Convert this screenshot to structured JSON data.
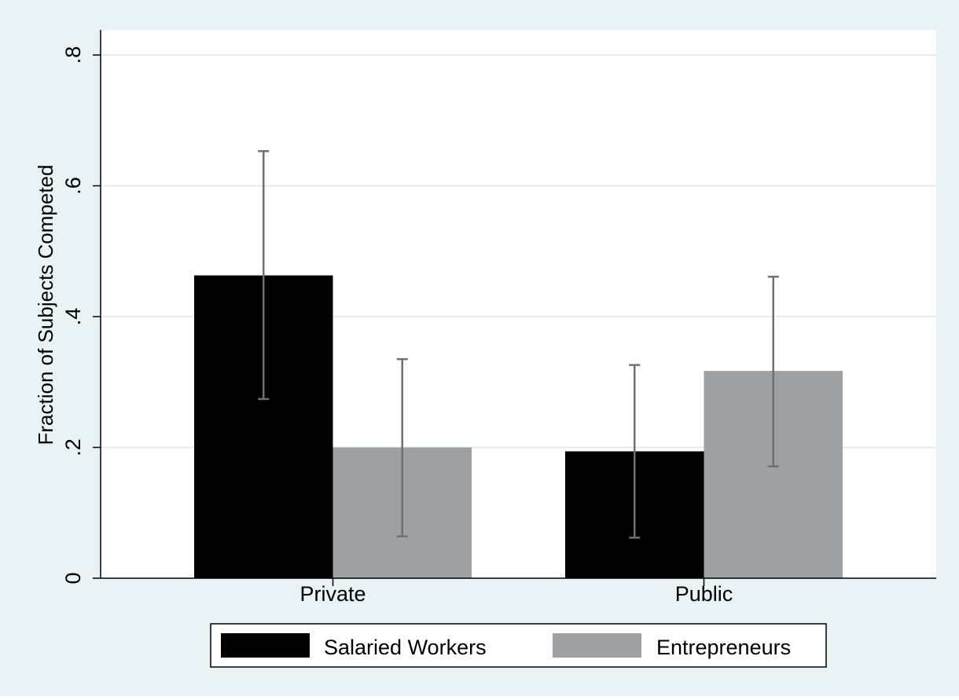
{
  "chart_data": {
    "type": "bar",
    "title": "",
    "xlabel": "",
    "ylabel": "Fraction of Subjects Competed",
    "ylim": [
      0,
      0.84
    ],
    "yticks": [
      0,
      0.2,
      0.4,
      0.6,
      0.8
    ],
    "ytick_labels": [
      "0",
      ".2",
      ".4",
      ".6",
      ".8"
    ],
    "grid": true,
    "legend_position": "bottom",
    "categories": [
      "Private",
      "Public"
    ],
    "series": [
      {
        "name": "Salaried Workers",
        "color": "#000000",
        "values": [
          0.463,
          0.194
        ],
        "ci_low": [
          0.274,
          0.062
        ],
        "ci_high": [
          0.653,
          0.326
        ]
      },
      {
        "name": "Entrepreneurs",
        "color": "#9fa0a2",
        "values": [
          0.2,
          0.317
        ],
        "ci_low": [
          0.064,
          0.171
        ],
        "ci_high": [
          0.335,
          0.461
        ]
      }
    ],
    "errorbar_color": "#707070",
    "colors": {
      "outer_background": "#e9f2f4",
      "plot_background": "#ffffff",
      "gridline": "#e3edf0",
      "axis": "#000000"
    }
  }
}
